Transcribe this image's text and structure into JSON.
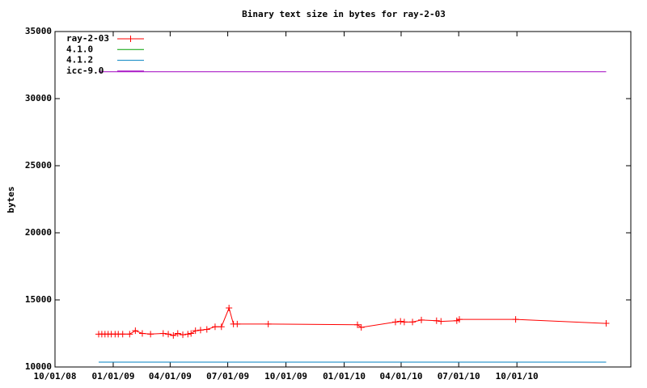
{
  "chart_data": {
    "type": "line",
    "title": "Binary text size in bytes for ray-2-03",
    "y_label": "bytes",
    "xlim": [
      "2008-10-01",
      "2011-03-30"
    ],
    "xticks": [
      {
        "value": "2008-10-01",
        "label": "10/01/08"
      },
      {
        "value": "2009-01-01",
        "label": "01/01/09"
      },
      {
        "value": "2009-04-01",
        "label": "04/01/09"
      },
      {
        "value": "2009-07-01",
        "label": "07/01/09"
      },
      {
        "value": "2009-10-01",
        "label": "10/01/09"
      },
      {
        "value": "2010-01-01",
        "label": "01/01/10"
      },
      {
        "value": "2010-04-01",
        "label": "04/01/10"
      },
      {
        "value": "2010-07-01",
        "label": "07/01/10"
      },
      {
        "value": "2010-10-01",
        "label": "10/01/10"
      }
    ],
    "ylim": [
      10000,
      35000
    ],
    "yticks": [
      10000,
      15000,
      20000,
      25000,
      30000,
      35000
    ],
    "legend": "top-left",
    "series": [
      {
        "name": "ray-2-03",
        "color": "#ff0000",
        "markers": true,
        "x": [
          "2008-12-09",
          "2008-12-14",
          "2008-12-19",
          "2008-12-24",
          "2008-12-29",
          "2009-01-04",
          "2009-01-09",
          "2009-01-16",
          "2009-01-27",
          "2009-02-05",
          "2009-02-16",
          "2009-03-01",
          "2009-03-21",
          "2009-03-29",
          "2009-04-06",
          "2009-04-13",
          "2009-04-21",
          "2009-04-29",
          "2009-05-04",
          "2009-05-11",
          "2009-05-19",
          "2009-05-29",
          "2009-06-11",
          "2009-06-21",
          "2009-07-03",
          "2009-07-10",
          "2009-07-16",
          "2009-09-03",
          "2010-01-22",
          "2010-01-28",
          "2010-03-23",
          "2010-03-31",
          "2010-04-06",
          "2010-04-19",
          "2010-05-03",
          "2010-05-27",
          "2010-06-03",
          "2010-06-28",
          "2010-07-02",
          "2010-09-29",
          "2011-02-19"
        ],
        "values": [
          12450,
          12450,
          12450,
          12450,
          12450,
          12450,
          12450,
          12450,
          12450,
          12700,
          12500,
          12450,
          12500,
          12450,
          12350,
          12500,
          12400,
          12450,
          12500,
          12700,
          12750,
          12800,
          13000,
          13000,
          14400,
          13200,
          13200,
          13200,
          13150,
          12950,
          13350,
          13400,
          13350,
          13350,
          13500,
          13450,
          13400,
          13450,
          13550,
          13550,
          13250
        ]
      },
      {
        "name": "4.1.0",
        "color": "#00a000",
        "x": [
          "2008-12-09",
          "2011-02-19"
        ],
        "values": [
          10360,
          10360
        ]
      },
      {
        "name": "4.1.2",
        "color": "#0080c0",
        "x": [
          "2008-12-09",
          "2011-02-19"
        ],
        "values": [
          10360,
          10360
        ]
      },
      {
        "name": "icc-9.0",
        "color": "#a000c0",
        "x": [
          "2008-12-09",
          "2011-02-19"
        ],
        "values": [
          32000,
          32000
        ]
      }
    ]
  }
}
